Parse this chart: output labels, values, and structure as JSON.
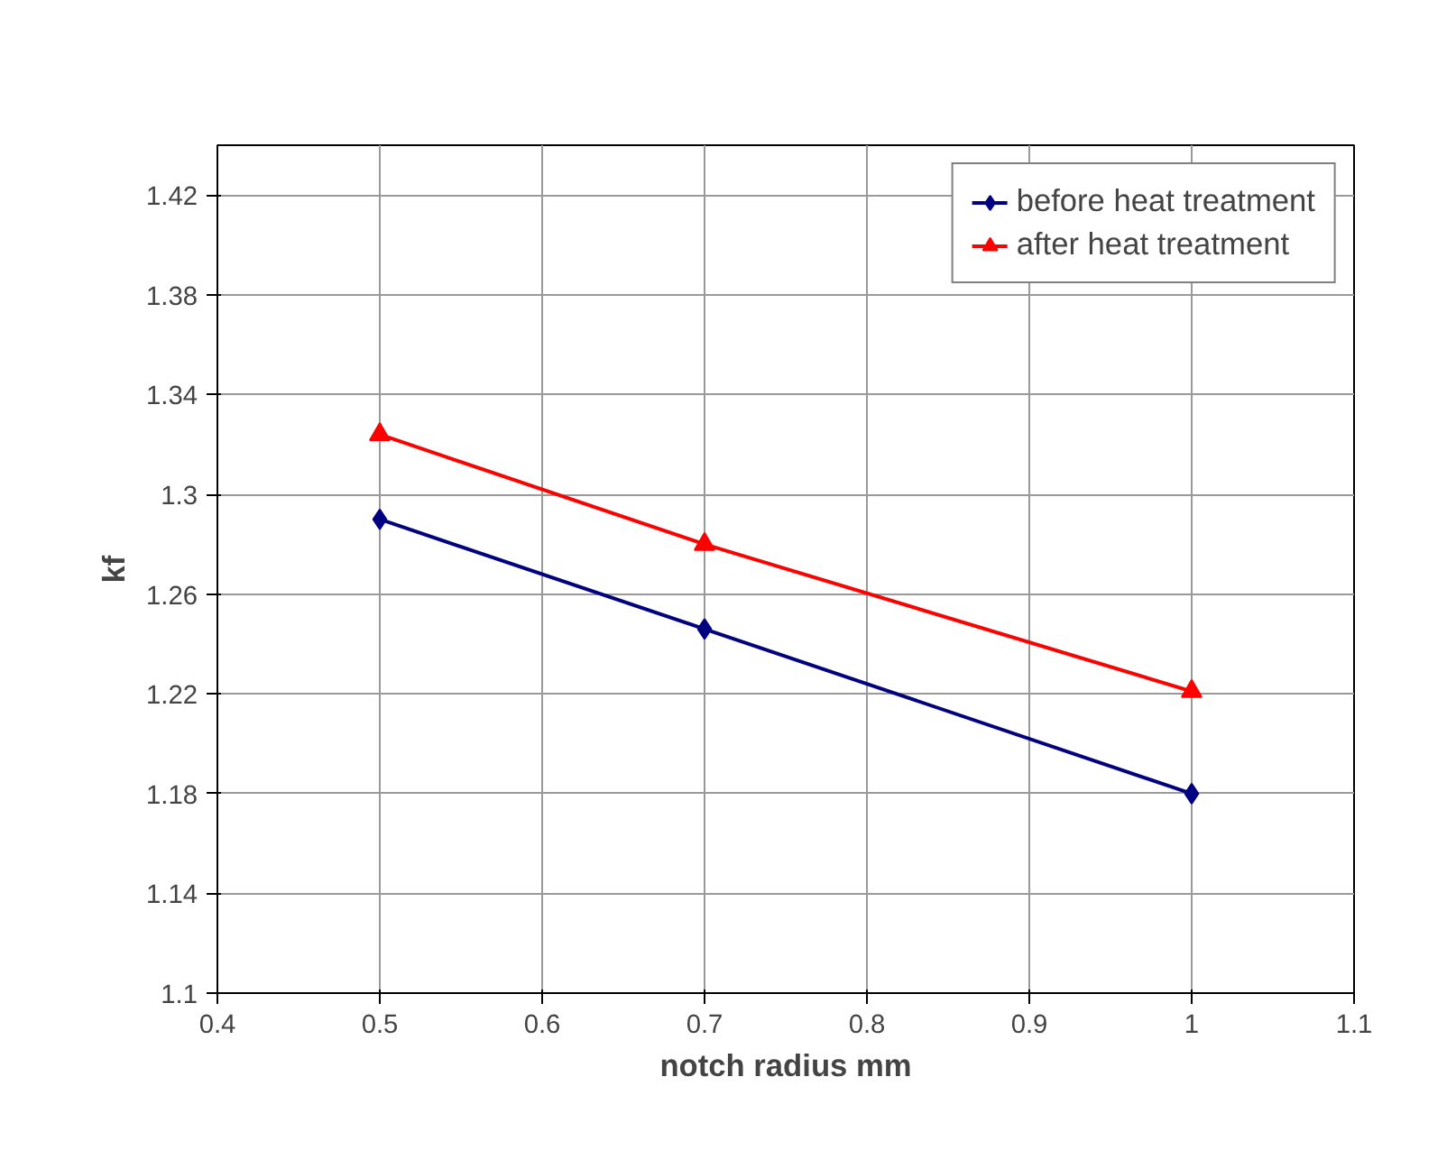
{
  "chart_data": {
    "type": "line",
    "xlabel": "notch radius mm",
    "ylabel": "kf",
    "x": [
      0.5,
      0.7,
      1.0
    ],
    "series": [
      {
        "name": "before heat treatment",
        "color": "#000080",
        "marker": "diamond",
        "values": [
          1.29,
          1.246,
          1.18
        ]
      },
      {
        "name": "after heat treatment",
        "color": "#ff0000",
        "marker": "triangle",
        "values": [
          1.324,
          1.28,
          1.221
        ]
      }
    ],
    "xlim": [
      0.4,
      1.1
    ],
    "xticks": [
      0.4,
      0.5,
      0.6,
      0.7,
      0.8,
      0.9,
      1,
      1.1
    ],
    "ylim": [
      1.1,
      1.44
    ],
    "yticks": [
      1.1,
      1.14,
      1.18,
      1.22,
      1.26,
      1.3,
      1.34,
      1.38,
      1.42
    ],
    "grid": true,
    "legend": "top right"
  }
}
